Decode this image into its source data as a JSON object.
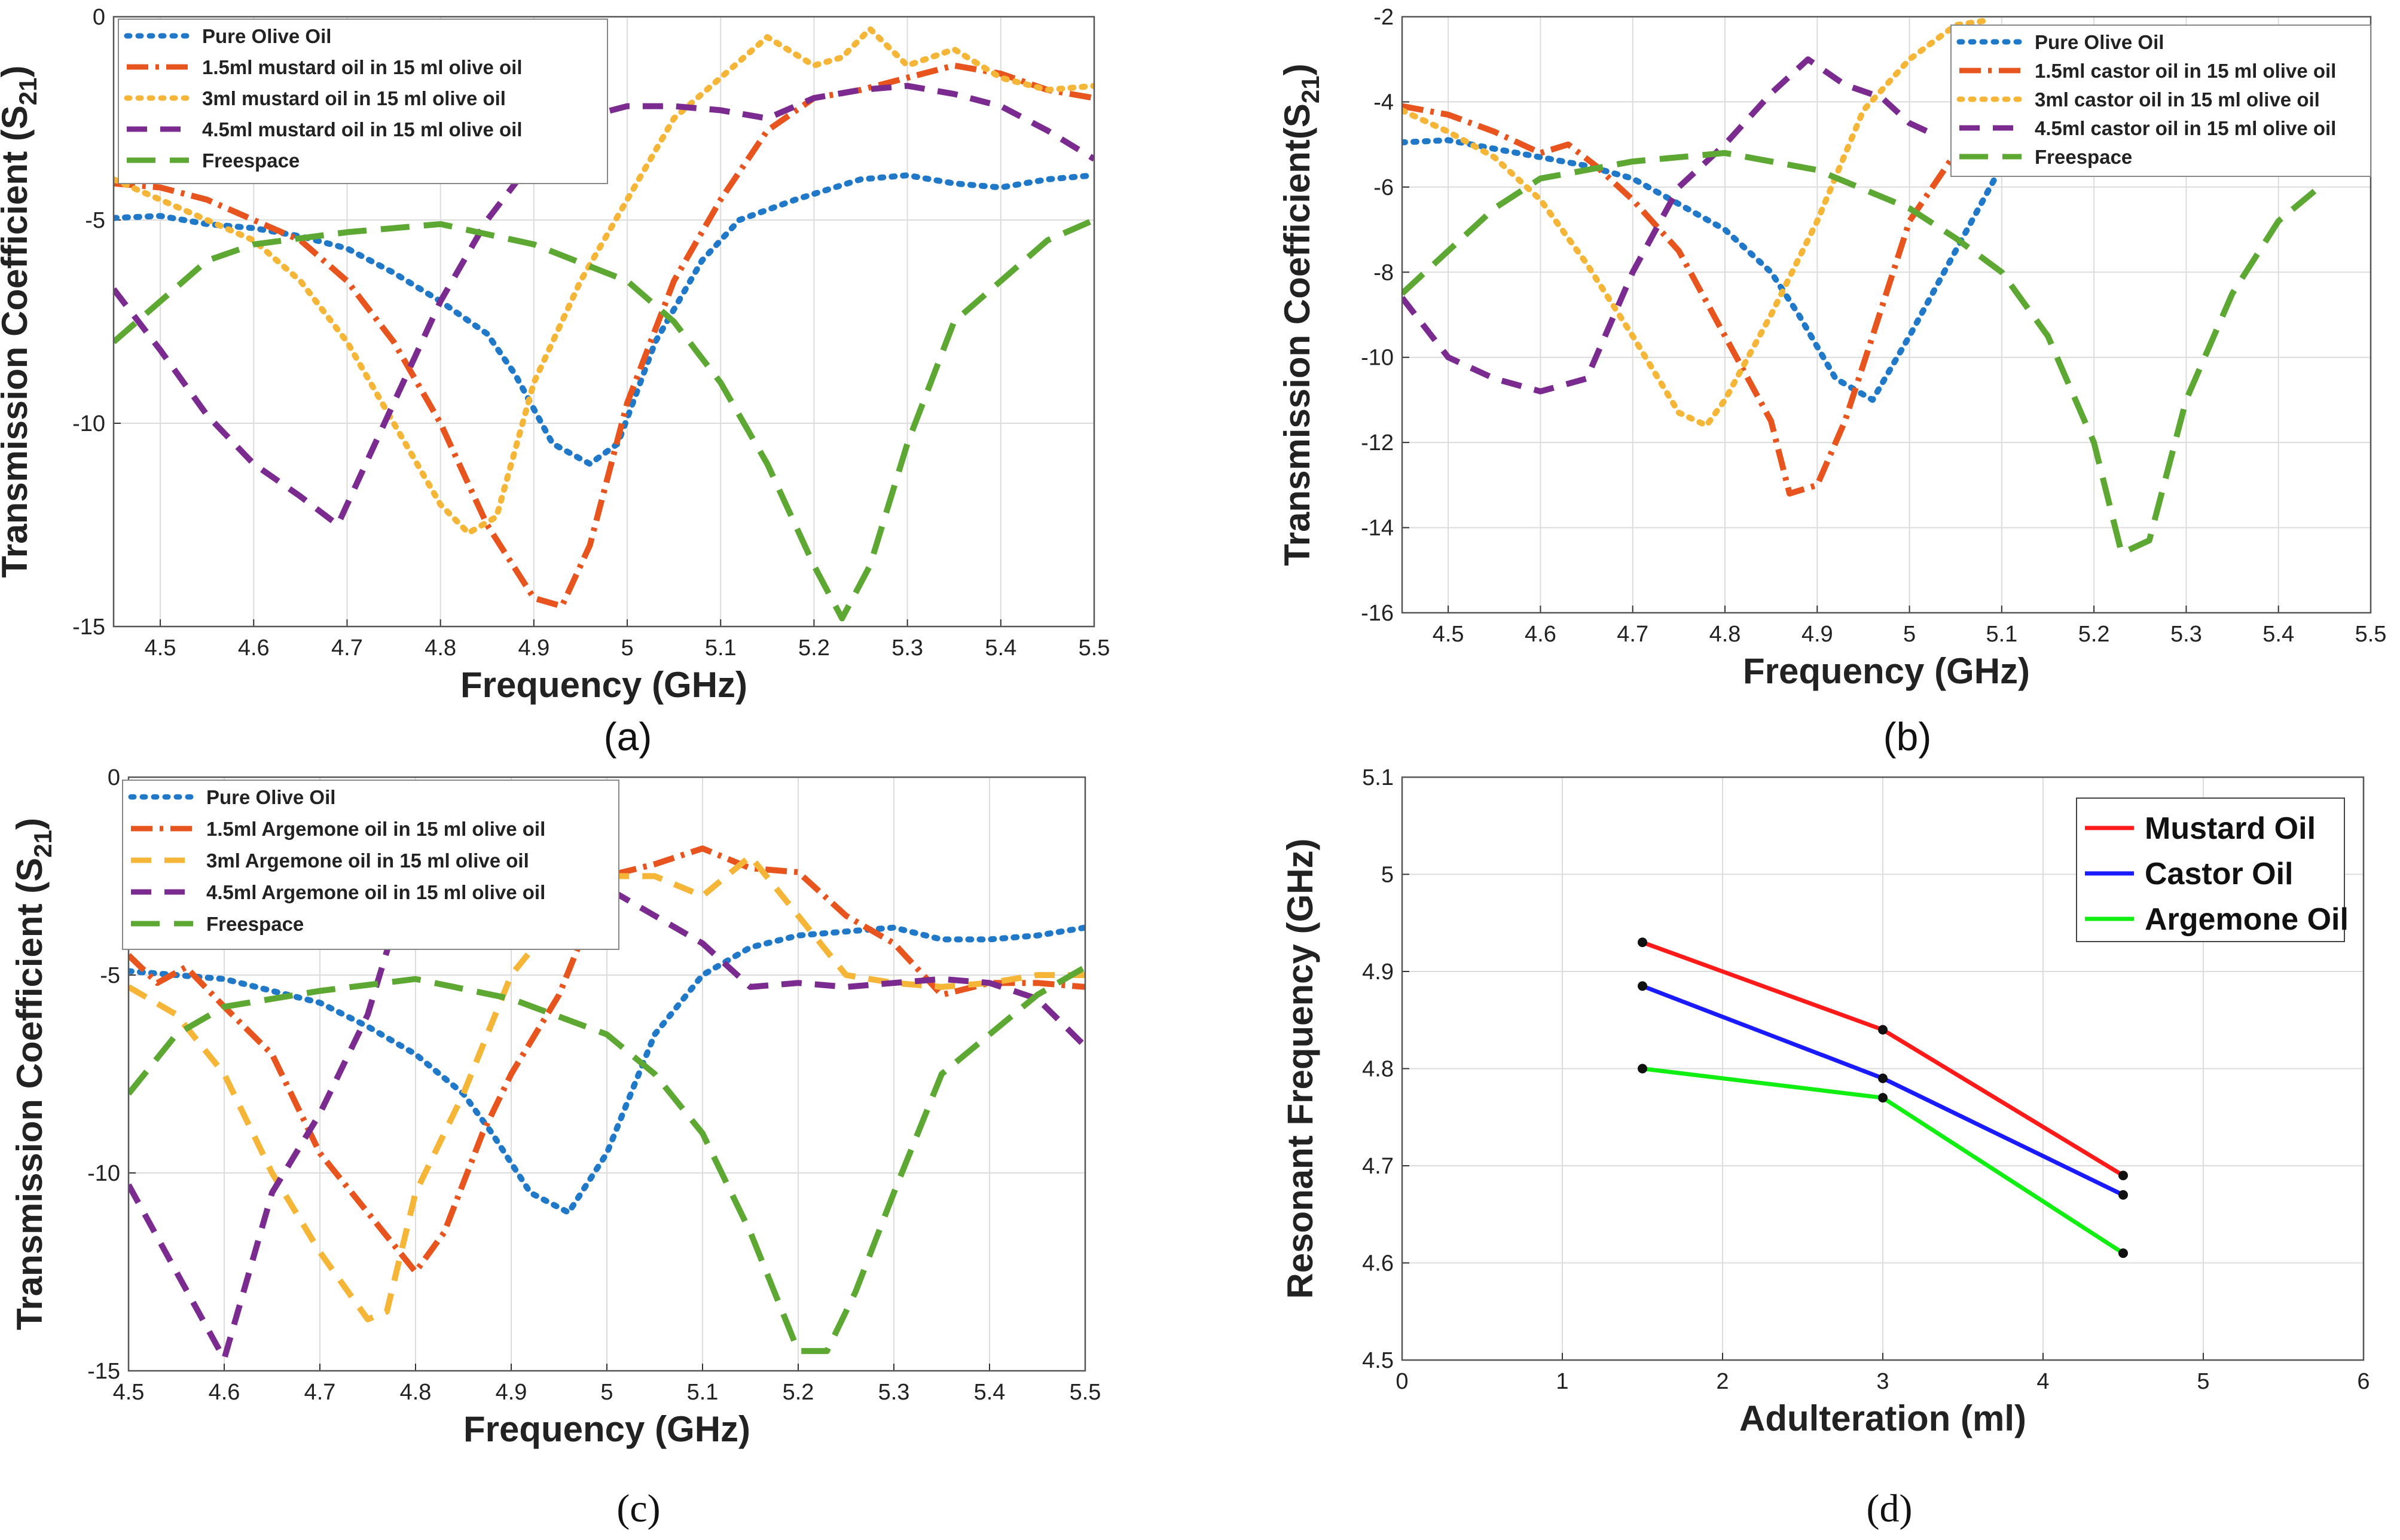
{
  "charts": [
    {
      "id": "a",
      "type": "line",
      "caption": "(a)",
      "xlabel": "Frequency (GHz)",
      "ylabel_main": "Transmission Coefficient (S",
      "ylabel_sub": "21",
      "ylabel_close": ")",
      "xlim": [
        4.45,
        5.5
      ],
      "ylim": [
        -15,
        0
      ],
      "xticks": [
        4.5,
        4.6,
        4.7,
        4.8,
        4.9,
        5,
        5.1,
        5.2,
        5.3,
        5.4,
        5.5
      ],
      "xtick_labels": [
        "4.5",
        "4.6",
        "4.7",
        "4.8",
        "4.9",
        "5",
        "5.1",
        "5.2",
        "5.3",
        "5.4",
        "5.5"
      ],
      "yticks": [
        -15,
        -10,
        -5,
        0
      ],
      "ytick_labels": [
        "-15",
        "-10",
        "-5",
        "0"
      ],
      "series": [
        {
          "name": "Pure Olive Oil",
          "color": "#1f78c8",
          "dash": "dot",
          "x": [
            4.45,
            4.5,
            4.55,
            4.6,
            4.65,
            4.7,
            4.75,
            4.8,
            4.85,
            4.88,
            4.92,
            4.96,
            4.99,
            5.03,
            5.08,
            5.12,
            5.18,
            5.25,
            5.3,
            5.35,
            5.4,
            5.45,
            5.5
          ],
          "y": [
            -4.95,
            -4.9,
            -5.1,
            -5.2,
            -5.4,
            -5.7,
            -6.3,
            -7.0,
            -7.8,
            -8.8,
            -10.5,
            -11.0,
            -10.5,
            -8.0,
            -6.0,
            -5.0,
            -4.5,
            -4.0,
            -3.9,
            -4.1,
            -4.2,
            -4.0,
            -3.9
          ]
        },
        {
          "name": "1.5ml mustard oil in 15 ml olive oil",
          "color": "#e8541d",
          "dash": "dashdot",
          "x": [
            4.45,
            4.5,
            4.55,
            4.6,
            4.65,
            4.7,
            4.75,
            4.8,
            4.85,
            4.9,
            4.93,
            4.96,
            5.0,
            5.05,
            5.1,
            5.15,
            5.2,
            5.25,
            5.3,
            5.35,
            5.4,
            5.45,
            5.5
          ],
          "y": [
            -4.1,
            -4.2,
            -4.5,
            -5.0,
            -5.5,
            -6.5,
            -8.0,
            -10.0,
            -12.5,
            -14.3,
            -14.5,
            -13.0,
            -9.5,
            -6.5,
            -4.5,
            -2.8,
            -2.0,
            -1.8,
            -1.5,
            -1.2,
            -1.4,
            -1.8,
            -2.0
          ]
        },
        {
          "name": "3ml mustard oil in 15 ml olive oil",
          "color": "#f5b638",
          "dash": "dot",
          "x": [
            4.45,
            4.5,
            4.55,
            4.6,
            4.65,
            4.7,
            4.75,
            4.8,
            4.83,
            4.86,
            4.9,
            4.95,
            5.0,
            5.05,
            5.1,
            5.15,
            5.2,
            5.23,
            5.26,
            5.3,
            5.35,
            5.4,
            5.45,
            5.5
          ],
          "y": [
            -4.0,
            -4.5,
            -5.0,
            -5.5,
            -6.5,
            -8.0,
            -10.0,
            -12.0,
            -12.7,
            -12.3,
            -9.0,
            -6.5,
            -4.5,
            -2.5,
            -1.5,
            -0.5,
            -1.2,
            -1.0,
            -0.3,
            -1.2,
            -0.8,
            -1.5,
            -1.8,
            -1.7
          ]
        },
        {
          "name": "4.5ml mustard oil in 15 ml olive oil",
          "color": "#7b2a90",
          "dash": "dash",
          "x": [
            4.45,
            4.5,
            4.55,
            4.6,
            4.65,
            4.69,
            4.72,
            4.76,
            4.8,
            4.85,
            4.9,
            4.95,
            5.0,
            5.05,
            5.1,
            5.15,
            5.2,
            5.25,
            5.3,
            5.35,
            5.4,
            5.45,
            5.5
          ],
          "y": [
            -6.7,
            -8.2,
            -9.8,
            -11.0,
            -11.8,
            -12.5,
            -11.0,
            -9.0,
            -7.0,
            -5.0,
            -3.5,
            -2.5,
            -2.2,
            -2.2,
            -2.3,
            -2.5,
            -2.0,
            -1.8,
            -1.7,
            -1.9,
            -2.2,
            -2.8,
            -3.5
          ]
        },
        {
          "name": "Freespace",
          "color": "#5ca832",
          "dash": "longdash",
          "x": [
            4.45,
            4.5,
            4.55,
            4.6,
            4.7,
            4.8,
            4.9,
            5.0,
            5.05,
            5.1,
            5.15,
            5.2,
            5.23,
            5.26,
            5.3,
            5.35,
            5.4,
            5.45,
            5.5
          ],
          "y": [
            -8.0,
            -7.0,
            -6.0,
            -5.6,
            -5.3,
            -5.1,
            -5.6,
            -6.5,
            -7.5,
            -9.0,
            -11.0,
            -13.5,
            -14.8,
            -13.5,
            -10.5,
            -7.5,
            -6.5,
            -5.5,
            -5.0
          ]
        }
      ]
    },
    {
      "id": "b",
      "type": "line",
      "caption": "(b)",
      "xlabel": "Frequency (GHz)",
      "ylabel_main": "Transmission Coefficient(S",
      "ylabel_sub": "21",
      "ylabel_close": ")",
      "xlim": [
        4.45,
        5.5
      ],
      "ylim": [
        -16,
        -2
      ],
      "xticks": [
        4.5,
        4.6,
        4.7,
        4.8,
        4.9,
        5,
        5.1,
        5.2,
        5.3,
        5.4,
        5.5
      ],
      "xtick_labels": [
        "4.5",
        "4.6",
        "4.7",
        "4.8",
        "4.9",
        "5",
        "5.1",
        "5.2",
        "5.3",
        "5.4",
        "5.5"
      ],
      "yticks": [
        -16,
        -14,
        -12,
        -10,
        -8,
        -6,
        -4,
        -2
      ],
      "ytick_labels": [
        "-16",
        "-14",
        "-12",
        "-10",
        "-8",
        "-6",
        "-4",
        "-2"
      ],
      "series": [
        {
          "name": "Pure Olive Oil",
          "color": "#1f78c8",
          "dash": "dot",
          "x": [
            4.45,
            4.5,
            4.55,
            4.6,
            4.65,
            4.7,
            4.75,
            4.8,
            4.85,
            4.88,
            4.92,
            4.96,
            5.0,
            5.05,
            5.1,
            5.12
          ],
          "y": [
            -4.95,
            -4.9,
            -5.1,
            -5.3,
            -5.5,
            -5.8,
            -6.4,
            -7.0,
            -8.0,
            -9.0,
            -10.5,
            -11.0,
            -9.5,
            -7.5,
            -5.5,
            -4.8
          ]
        },
        {
          "name": "1.5ml castor oil in 15 ml olive oil",
          "color": "#e8541d",
          "dash": "dashdot",
          "x": [
            4.45,
            4.5,
            4.55,
            4.6,
            4.63,
            4.66,
            4.7,
            4.75,
            4.8,
            4.85,
            4.87,
            4.9,
            4.93,
            4.96,
            5.0,
            5.05,
            5.08
          ],
          "y": [
            -4.1,
            -4.3,
            -4.7,
            -5.2,
            -5.0,
            -5.5,
            -6.3,
            -7.5,
            -9.5,
            -11.5,
            -13.2,
            -13.0,
            -11.5,
            -9.5,
            -6.8,
            -5.2,
            -4.8
          ]
        },
        {
          "name": "3ml castor oil in 15 ml olive oil",
          "color": "#f5b638",
          "dash": "dot",
          "x": [
            4.45,
            4.5,
            4.55,
            4.6,
            4.65,
            4.7,
            4.75,
            4.78,
            4.8,
            4.85,
            4.9,
            4.95,
            5.0,
            5.05,
            5.08
          ],
          "y": [
            -4.2,
            -4.7,
            -5.3,
            -6.3,
            -7.8,
            -9.5,
            -11.3,
            -11.6,
            -11.0,
            -9.0,
            -6.8,
            -4.2,
            -3.0,
            -2.2,
            -2.1
          ]
        },
        {
          "name": "4.5ml castor oil in 15 ml olive oil",
          "color": "#7b2a90",
          "dash": "dash",
          "x": [
            4.45,
            4.5,
            4.55,
            4.6,
            4.65,
            4.7,
            4.75,
            4.8,
            4.85,
            4.89,
            4.93,
            4.97,
            5.0,
            5.03
          ],
          "y": [
            -8.6,
            -10.0,
            -10.5,
            -10.8,
            -10.5,
            -8.0,
            -6.0,
            -5.0,
            -3.8,
            -3.0,
            -3.6,
            -3.9,
            -4.5,
            -4.8
          ]
        },
        {
          "name": "Freespace",
          "color": "#5ca832",
          "dash": "longdash",
          "x": [
            4.45,
            4.5,
            4.55,
            4.6,
            4.7,
            4.8,
            4.9,
            5.0,
            5.05,
            5.1,
            5.15,
            5.2,
            5.23,
            5.26,
            5.3,
            5.35,
            5.4,
            5.45
          ],
          "y": [
            -8.5,
            -7.5,
            -6.5,
            -5.8,
            -5.4,
            -5.2,
            -5.6,
            -6.5,
            -7.2,
            -8.0,
            -9.5,
            -12.0,
            -14.6,
            -14.3,
            -11.0,
            -8.5,
            -6.8,
            -5.9
          ]
        }
      ]
    },
    {
      "id": "c",
      "type": "line",
      "caption": "(c)",
      "xlabel": "Frequency (GHz)",
      "ylabel_main": "Transmission Coefficient (S",
      "ylabel_sub": "21",
      "ylabel_close": ")",
      "xlim": [
        4.5,
        5.5
      ],
      "ylim": [
        -15,
        0
      ],
      "xticks": [
        4.5,
        4.6,
        4.7,
        4.8,
        4.9,
        5,
        5.1,
        5.2,
        5.3,
        5.4,
        5.5
      ],
      "xtick_labels": [
        "4.5",
        "4.6",
        "4.7",
        "4.8",
        "4.9",
        "5",
        "5.1",
        "5.2",
        "5.3",
        "5.4",
        "5.5"
      ],
      "yticks": [
        -15,
        -10,
        -5,
        0
      ],
      "ytick_labels": [
        "-15",
        "-10",
        "-5",
        "0"
      ],
      "series": [
        {
          "name": "Pure Olive Oil",
          "color": "#1f78c8",
          "dash": "dot",
          "x": [
            4.5,
            4.55,
            4.6,
            4.65,
            4.7,
            4.75,
            4.8,
            4.85,
            4.88,
            4.92,
            4.96,
            5.0,
            5.05,
            5.1,
            5.15,
            5.2,
            5.25,
            5.3,
            5.35,
            5.4,
            5.45,
            5.5
          ],
          "y": [
            -4.9,
            -5.0,
            -5.1,
            -5.4,
            -5.7,
            -6.3,
            -7.0,
            -8.0,
            -9.0,
            -10.5,
            -11.0,
            -9.5,
            -6.5,
            -5.0,
            -4.3,
            -4.0,
            -3.9,
            -3.8,
            -4.1,
            -4.1,
            -4.0,
            -3.8
          ]
        },
        {
          "name": "1.5ml Argemone oil in 15 ml olive oil",
          "color": "#e8541d",
          "dash": "dashdot",
          "x": [
            4.5,
            4.53,
            4.56,
            4.6,
            4.65,
            4.7,
            4.75,
            4.8,
            4.83,
            4.87,
            4.9,
            4.95,
            5.0,
            5.05,
            5.1,
            5.15,
            5.2,
            5.25,
            5.3,
            5.35,
            5.4,
            5.45,
            5.5
          ],
          "y": [
            -4.5,
            -5.2,
            -4.8,
            -5.8,
            -7.0,
            -9.5,
            -11.0,
            -12.5,
            -11.5,
            -9.0,
            -7.5,
            -5.5,
            -2.5,
            -2.2,
            -1.8,
            -2.3,
            -2.4,
            -3.5,
            -4.2,
            -5.5,
            -5.2,
            -5.2,
            -5.3
          ]
        },
        {
          "name": "3ml Argemone oil in 15 ml olive oil",
          "color": "#f5b638",
          "dash": "dash",
          "x": [
            4.5,
            4.55,
            4.6,
            4.65,
            4.7,
            4.75,
            4.77,
            4.8,
            4.85,
            4.9,
            4.95,
            5.0,
            5.05,
            5.1,
            5.15,
            5.2,
            5.25,
            5.3,
            5.35,
            5.4,
            5.45,
            5.5
          ],
          "y": [
            -5.3,
            -6.0,
            -7.5,
            -10.0,
            -12.0,
            -13.7,
            -13.5,
            -10.5,
            -8.0,
            -5.0,
            -3.5,
            -2.5,
            -2.5,
            -3.0,
            -2.0,
            -3.5,
            -5.0,
            -5.2,
            -5.3,
            -5.2,
            -5.0,
            -5.0
          ]
        },
        {
          "name": "4.5ml Argemone oil in 15 ml olive oil",
          "color": "#7b2a90",
          "dash": "dash",
          "x": [
            4.5,
            4.55,
            4.6,
            4.65,
            4.7,
            4.75,
            4.8,
            4.85,
            4.9,
            4.95,
            5.0,
            5.05,
            5.1,
            5.15,
            5.2,
            5.25,
            5.3,
            5.35,
            5.4,
            5.45,
            5.5
          ],
          "y": [
            -10.3,
            -12.5,
            -14.7,
            -10.5,
            -8.5,
            -6.0,
            -2.0,
            -1.0,
            -1.2,
            -1.8,
            -2.8,
            -3.5,
            -4.2,
            -5.3,
            -5.2,
            -5.3,
            -5.2,
            -5.1,
            -5.2,
            -5.6,
            -6.8
          ]
        },
        {
          "name": "Freespace",
          "color": "#5ca832",
          "dash": "longdash",
          "x": [
            4.5,
            4.55,
            4.6,
            4.7,
            4.8,
            4.9,
            5.0,
            5.05,
            5.1,
            5.15,
            5.2,
            5.23,
            5.26,
            5.3,
            5.35,
            5.4,
            5.45,
            5.5
          ],
          "y": [
            -8.0,
            -6.5,
            -5.8,
            -5.4,
            -5.1,
            -5.6,
            -6.5,
            -7.5,
            -9.0,
            -11.5,
            -14.5,
            -14.5,
            -13.0,
            -10.5,
            -7.5,
            -6.5,
            -5.5,
            -4.8
          ]
        }
      ]
    },
    {
      "id": "d",
      "type": "line",
      "caption": "(d)",
      "xlabel": "Adulteration (ml)",
      "ylabel_main": "Resonant Frequency (GHz)",
      "xlim": [
        0,
        6
      ],
      "ylim": [
        4.5,
        5.1
      ],
      "xticks": [
        0,
        1,
        2,
        3,
        4,
        5,
        6
      ],
      "xtick_labels": [
        "0",
        "1",
        "2",
        "3",
        "4",
        "5",
        "6"
      ],
      "yticks": [
        4.5,
        4.6,
        4.7,
        4.8,
        4.9,
        5,
        5.1
      ],
      "ytick_labels": [
        "4.5",
        "4.6",
        "4.7",
        "4.8",
        "4.9",
        "5",
        "5.1"
      ],
      "series": [
        {
          "name": "Mustard Oil",
          "color": "#ff1a1a",
          "x": [
            1.5,
            3,
            4.5
          ],
          "y": [
            4.93,
            4.84,
            4.69
          ]
        },
        {
          "name": "Castor Oil",
          "color": "#1a1aff",
          "x": [
            1.5,
            3,
            4.5
          ],
          "y": [
            4.885,
            4.79,
            4.67
          ]
        },
        {
          "name": "Argemone Oil",
          "color": "#11ee11",
          "x": [
            1.5,
            3,
            4.5
          ],
          "y": [
            4.8,
            4.77,
            4.61
          ]
        }
      ]
    }
  ]
}
